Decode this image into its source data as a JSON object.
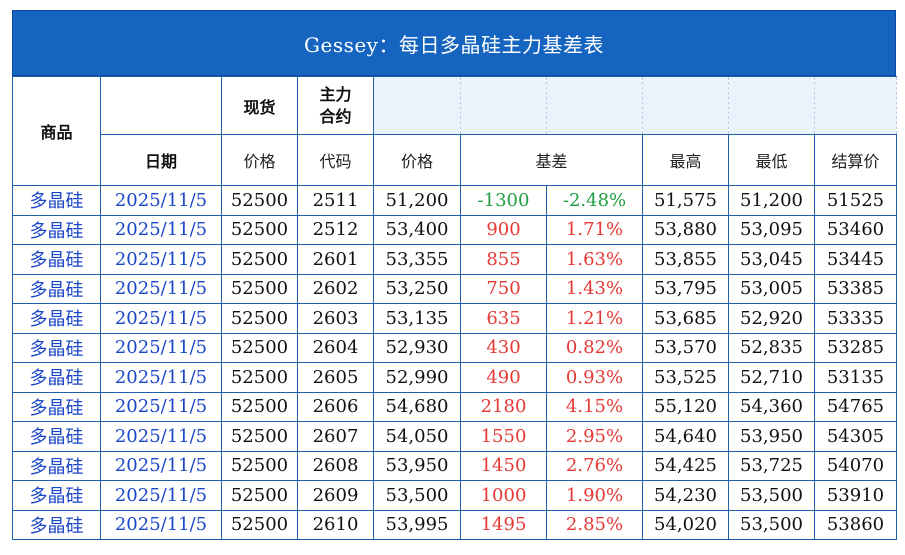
{
  "title": "Gessey：每日多晶硅主力基差表",
  "header": {
    "product": "商品",
    "spot": "现货",
    "main_contract": "主力\n合约",
    "date": "日期",
    "spot_price": "价格",
    "code": "代码",
    "price": "价格",
    "basis": "基差",
    "high": "最高",
    "low": "最低",
    "settle": "结算价"
  },
  "colors": {
    "header_bg": "#1565C0",
    "border": "#1f5fa8",
    "shaded": "#eaf3fc",
    "positive": "#e53935",
    "negative": "#1e9e3e",
    "link_blue": "#1a46c8"
  },
  "rows": [
    {
      "product": "多晶硅",
      "date": "2025/11/5",
      "spot": "52500",
      "code": "2511",
      "price": "51,200",
      "basis": "-1300",
      "pct": "-2.48%",
      "high": "51,575",
      "low": "51,200",
      "settle": "51525",
      "sign": "neg"
    },
    {
      "product": "多晶硅",
      "date": "2025/11/5",
      "spot": "52500",
      "code": "2512",
      "price": "53,400",
      "basis": "900",
      "pct": "1.71%",
      "high": "53,880",
      "low": "53,095",
      "settle": "53460",
      "sign": "pos"
    },
    {
      "product": "多晶硅",
      "date": "2025/11/5",
      "spot": "52500",
      "code": "2601",
      "price": "53,355",
      "basis": "855",
      "pct": "1.63%",
      "high": "53,855",
      "low": "53,045",
      "settle": "53445",
      "sign": "pos"
    },
    {
      "product": "多晶硅",
      "date": "2025/11/5",
      "spot": "52500",
      "code": "2602",
      "price": "53,250",
      "basis": "750",
      "pct": "1.43%",
      "high": "53,795",
      "low": "53,005",
      "settle": "53385",
      "sign": "pos"
    },
    {
      "product": "多晶硅",
      "date": "2025/11/5",
      "spot": "52500",
      "code": "2603",
      "price": "53,135",
      "basis": "635",
      "pct": "1.21%",
      "high": "53,685",
      "low": "52,920",
      "settle": "53335",
      "sign": "pos"
    },
    {
      "product": "多晶硅",
      "date": "2025/11/5",
      "spot": "52500",
      "code": "2604",
      "price": "52,930",
      "basis": "430",
      "pct": "0.82%",
      "high": "53,570",
      "low": "52,835",
      "settle": "53285",
      "sign": "pos"
    },
    {
      "product": "多晶硅",
      "date": "2025/11/5",
      "spot": "52500",
      "code": "2605",
      "price": "52,990",
      "basis": "490",
      "pct": "0.93%",
      "high": "53,525",
      "low": "52,710",
      "settle": "53135",
      "sign": "pos"
    },
    {
      "product": "多晶硅",
      "date": "2025/11/5",
      "spot": "52500",
      "code": "2606",
      "price": "54,680",
      "basis": "2180",
      "pct": "4.15%",
      "high": "55,120",
      "low": "54,360",
      "settle": "54765",
      "sign": "pos"
    },
    {
      "product": "多晶硅",
      "date": "2025/11/5",
      "spot": "52500",
      "code": "2607",
      "price": "54,050",
      "basis": "1550",
      "pct": "2.95%",
      "high": "54,640",
      "low": "53,950",
      "settle": "54305",
      "sign": "pos"
    },
    {
      "product": "多晶硅",
      "date": "2025/11/5",
      "spot": "52500",
      "code": "2608",
      "price": "53,950",
      "basis": "1450",
      "pct": "2.76%",
      "high": "54,425",
      "low": "53,725",
      "settle": "54070",
      "sign": "pos"
    },
    {
      "product": "多晶硅",
      "date": "2025/11/5",
      "spot": "52500",
      "code": "2609",
      "price": "53,500",
      "basis": "1000",
      "pct": "1.90%",
      "high": "54,230",
      "low": "53,500",
      "settle": "53910",
      "sign": "pos"
    },
    {
      "product": "多晶硅",
      "date": "2025/11/5",
      "spot": "52500",
      "code": "2610",
      "price": "53,995",
      "basis": "1495",
      "pct": "2.85%",
      "high": "54,020",
      "low": "53,500",
      "settle": "53860",
      "sign": "pos"
    }
  ]
}
